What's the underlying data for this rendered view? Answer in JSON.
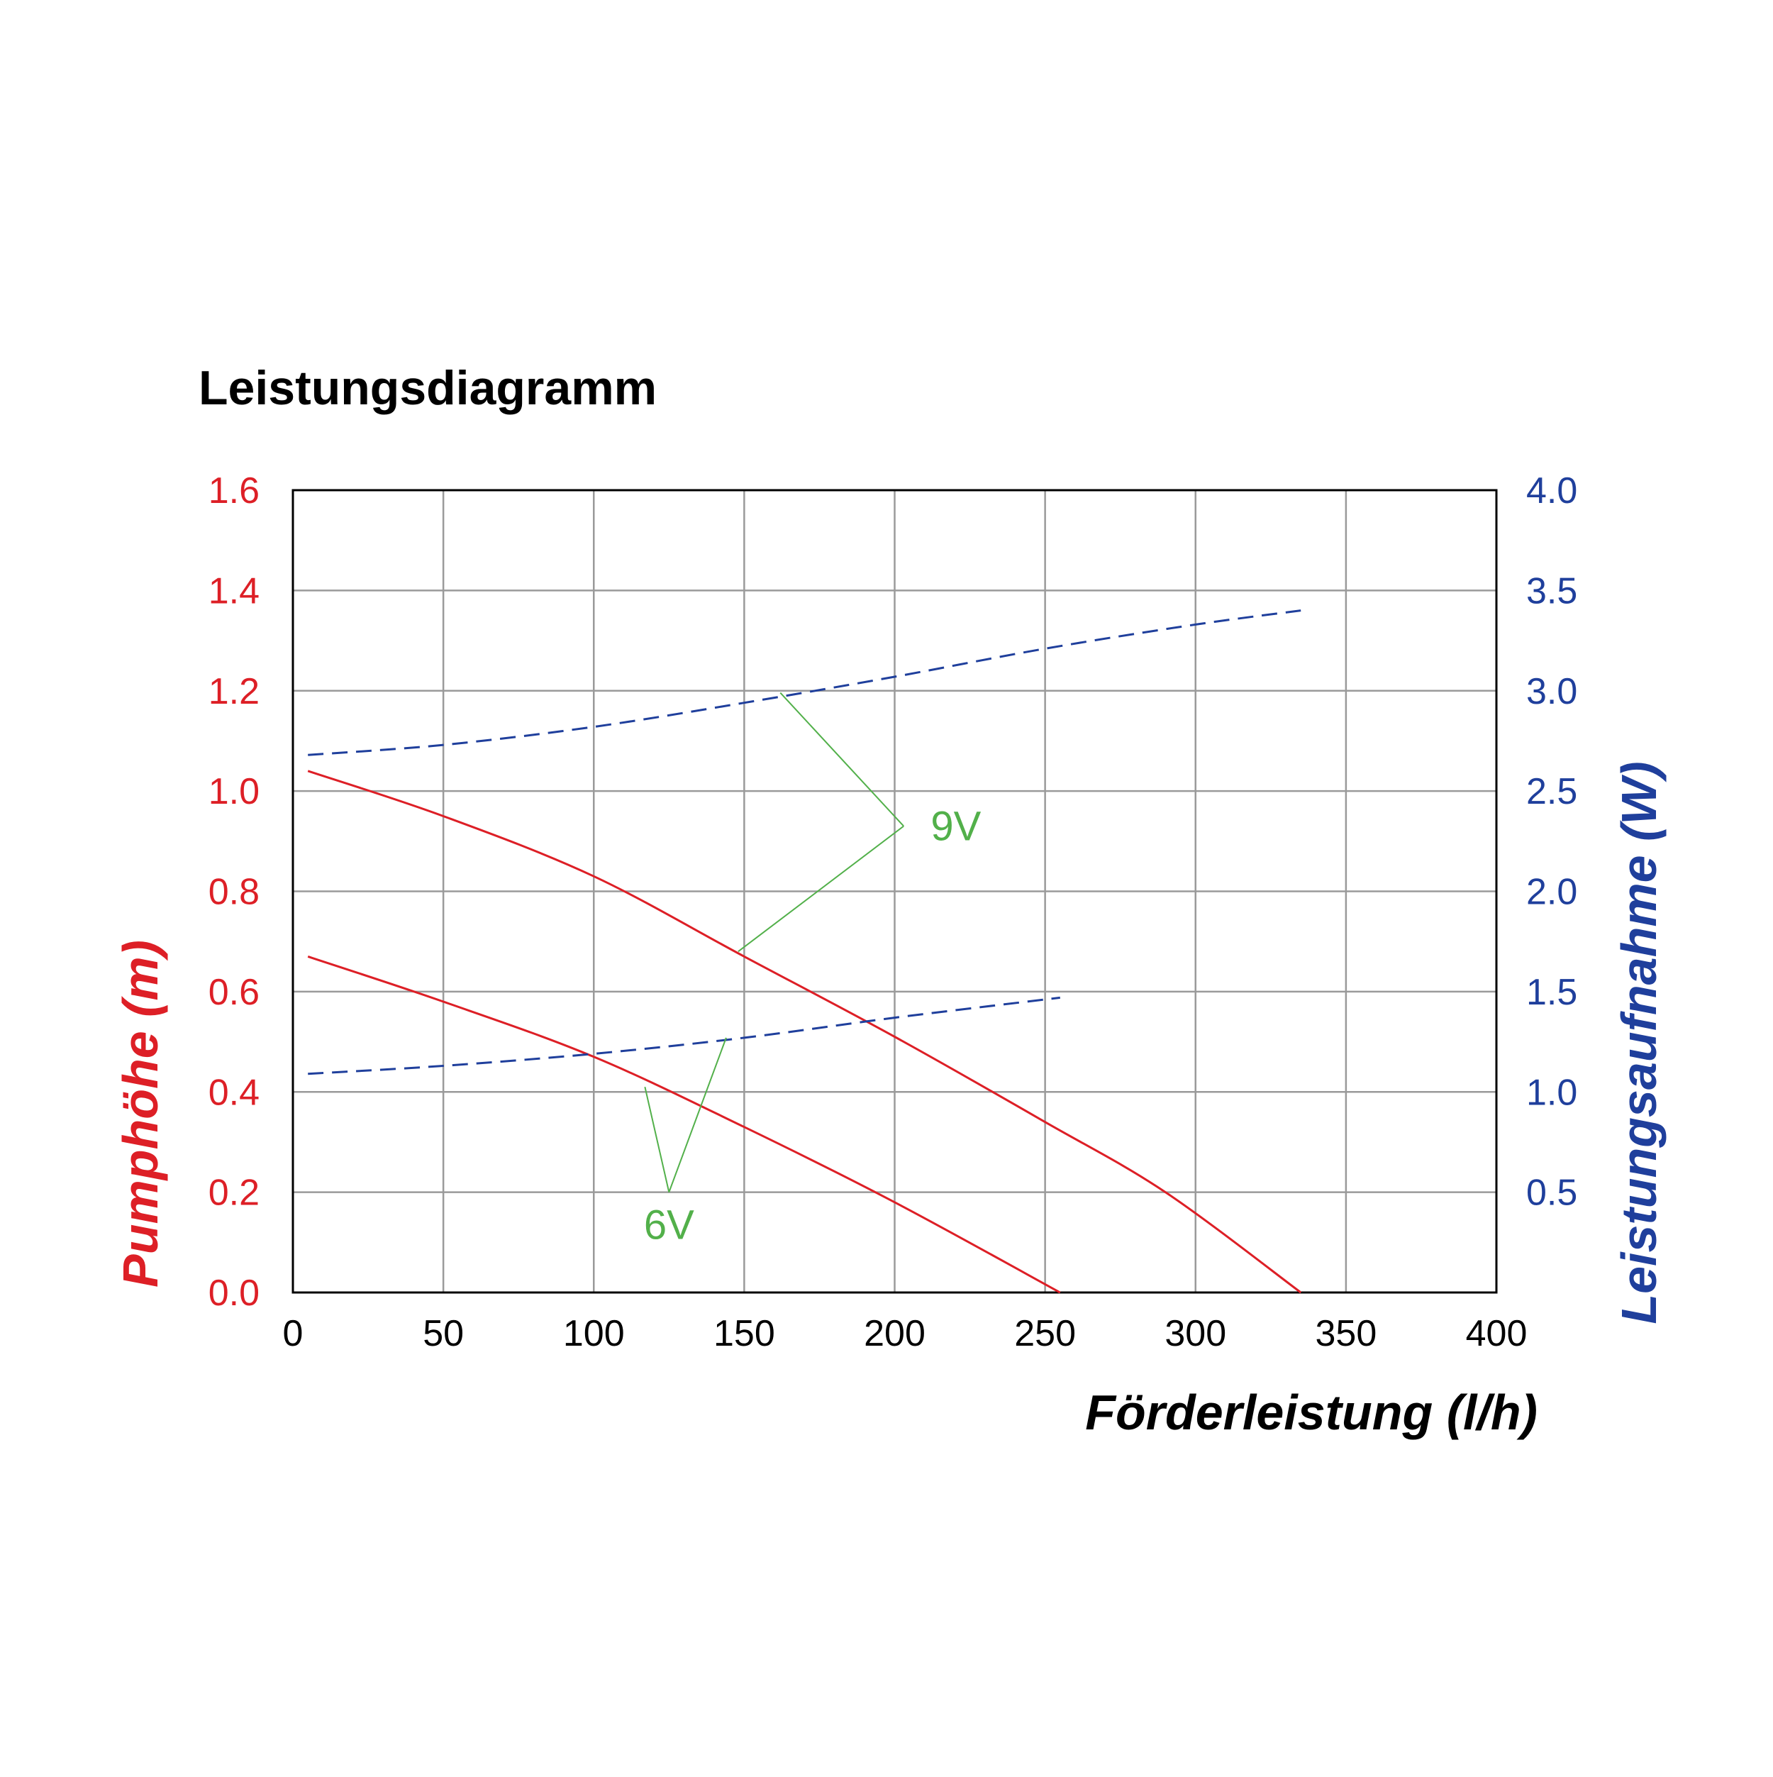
{
  "chart_data": {
    "type": "line",
    "title": "Leistungsdiagramm",
    "xlabel": "Förderleistung (l/h)",
    "ylabel_left": "Pumphöhe (m)",
    "ylabel_right": "Leistungsaufnahme (W)",
    "xlim": [
      0,
      400
    ],
    "ylim_left": [
      0,
      1.6
    ],
    "ylim_right": [
      0,
      4.0
    ],
    "x_ticks": [
      "0",
      "50",
      "100",
      "150",
      "200",
      "250",
      "300",
      "350",
      "400"
    ],
    "y_left_ticks": [
      "0.0",
      "0.2",
      "0.4",
      "0.6",
      "0.8",
      "1.0",
      "1.2",
      "1.4",
      "1.6"
    ],
    "y_right_ticks": [
      "0.5",
      "1.0",
      "1.5",
      "2.0",
      "2.5",
      "3.0",
      "3.5",
      "4.0"
    ],
    "grid": true,
    "colors": {
      "head": "#dd1f26",
      "power": "#1f3f9c",
      "annotation": "#52b04a",
      "grid": "#9a9a9a",
      "text": "#000000"
    },
    "series": [
      {
        "axis": "left",
        "style": "solid",
        "x": [
          5,
          50,
          100,
          150,
          200,
          250,
          290,
          335
        ],
        "y": [
          1.04,
          0.95,
          0.83,
          0.67,
          0.51,
          0.34,
          0.2,
          0.0
        ]
      },
      {
        "axis": "left",
        "style": "solid",
        "x": [
          5,
          50,
          100,
          150,
          200,
          255
        ],
        "y": [
          0.67,
          0.58,
          0.47,
          0.33,
          0.18,
          0.0
        ]
      },
      {
        "axis": "right",
        "style": "dashed",
        "x": [
          5,
          50,
          100,
          150,
          200,
          250,
          300,
          335
        ],
        "y": [
          2.68,
          2.73,
          2.82,
          2.94,
          3.07,
          3.21,
          3.33,
          3.4
        ]
      },
      {
        "axis": "right",
        "style": "dashed",
        "x": [
          5,
          50,
          100,
          150,
          200,
          255
        ],
        "y": [
          1.09,
          1.13,
          1.19,
          1.27,
          1.37,
          1.47
        ]
      }
    ],
    "annotations": [
      {
        "text": "9V",
        "anchor": [
          203,
          0.93
        ],
        "label_at": [
          212,
          0.93
        ],
        "targets": [
          {
            "x": 162,
            "axis": "right",
            "y": 2.99
          },
          {
            "x": 148,
            "axis": "left",
            "y": 0.68
          }
        ]
      },
      {
        "text": "6V",
        "anchor": [
          125,
          0.2
        ],
        "label_at": [
          125,
          0.135
        ],
        "targets": [
          {
            "x": 117,
            "axis": "left",
            "y": 0.41
          },
          {
            "x": 144,
            "axis": "right",
            "y": 1.27
          }
        ]
      }
    ]
  }
}
